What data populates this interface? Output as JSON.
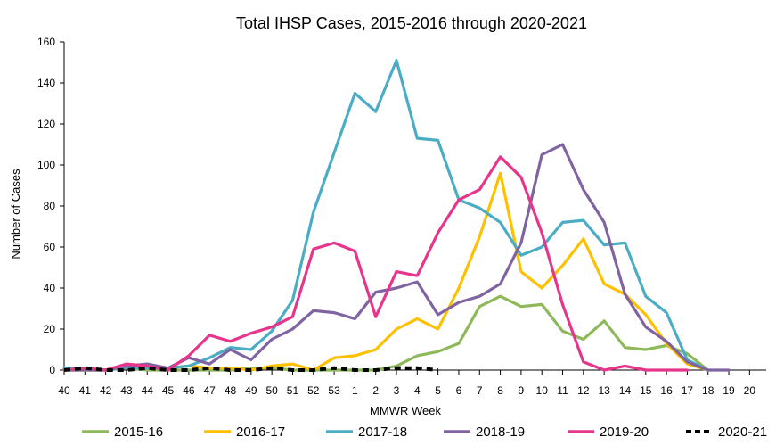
{
  "chart_data": {
    "type": "line",
    "title": "Total IHSP Cases, 2015-2016 through 2020-2021",
    "xlabel": "MMWR Week",
    "ylabel": "Number of Cases",
    "ylim": [
      0,
      160
    ],
    "yticks": [
      "0",
      "20",
      "40",
      "60",
      "80",
      "100",
      "120",
      "140",
      "160"
    ],
    "categories": [
      "40",
      "41",
      "42",
      "43",
      "44",
      "45",
      "46",
      "47",
      "48",
      "49",
      "50",
      "51",
      "52",
      "53",
      "1",
      "2",
      "3",
      "4",
      "5",
      "6",
      "7",
      "8",
      "9",
      "10",
      "11",
      "12",
      "13",
      "14",
      "15",
      "16",
      "17",
      "18",
      "19",
      "20"
    ],
    "grid": false,
    "legend_position": "bottom",
    "series": [
      {
        "name": "2015-16",
        "color": "#8DB95A",
        "dashed": false,
        "values": [
          0,
          0,
          0,
          1,
          0,
          0,
          0,
          0,
          0,
          1,
          1,
          0,
          0,
          0,
          0,
          0,
          2,
          7,
          9,
          13,
          31,
          36,
          31,
          32,
          19,
          15,
          24,
          11,
          10,
          12,
          8,
          0,
          null,
          null
        ]
      },
      {
        "name": "2016-17",
        "color": "#FFC000",
        "dashed": false,
        "values": [
          0,
          0,
          0,
          1,
          2,
          1,
          2,
          1,
          1,
          0,
          2,
          3,
          0,
          6,
          7,
          10,
          20,
          25,
          20,
          40,
          65,
          96,
          48,
          40,
          51,
          64,
          42,
          37,
          27,
          13,
          3,
          0,
          null,
          null
        ]
      },
      {
        "name": "2017-18",
        "color": "#4BACC6",
        "dashed": false,
        "values": [
          1,
          1,
          0,
          1,
          1,
          1,
          2,
          6,
          11,
          10,
          19,
          34,
          77,
          106,
          135,
          126,
          151,
          113,
          112,
          83,
          79,
          72,
          56,
          60,
          72,
          73,
          61,
          62,
          36,
          28,
          5,
          0,
          null,
          null
        ]
      },
      {
        "name": "2018-19",
        "color": "#8064A2",
        "dashed": false,
        "values": [
          0,
          0,
          0,
          2,
          3,
          1,
          6,
          3,
          10,
          5,
          15,
          20,
          29,
          28,
          25,
          38,
          40,
          43,
          27,
          33,
          36,
          42,
          62,
          105,
          110,
          88,
          72,
          37,
          21,
          14,
          4,
          0,
          0,
          null
        ]
      },
      {
        "name": "2019-20",
        "color": "#E8358C",
        "dashed": false,
        "values": [
          0,
          1,
          0,
          3,
          2,
          0,
          7,
          17,
          14,
          18,
          21,
          26,
          59,
          62,
          58,
          26,
          48,
          46,
          67,
          83,
          88,
          104,
          94,
          67,
          32,
          4,
          0,
          2,
          0,
          0,
          0,
          null,
          null,
          null
        ]
      },
      {
        "name": "2020-21",
        "color": "#000000",
        "dashed": true,
        "values": [
          0,
          1,
          0,
          0,
          1,
          0,
          0,
          1,
          0,
          0,
          1,
          0,
          0,
          1,
          0,
          0,
          1,
          1,
          0,
          null,
          null,
          null,
          null,
          null,
          null,
          null,
          null,
          null,
          null,
          null,
          null,
          null,
          null,
          null
        ]
      }
    ]
  }
}
